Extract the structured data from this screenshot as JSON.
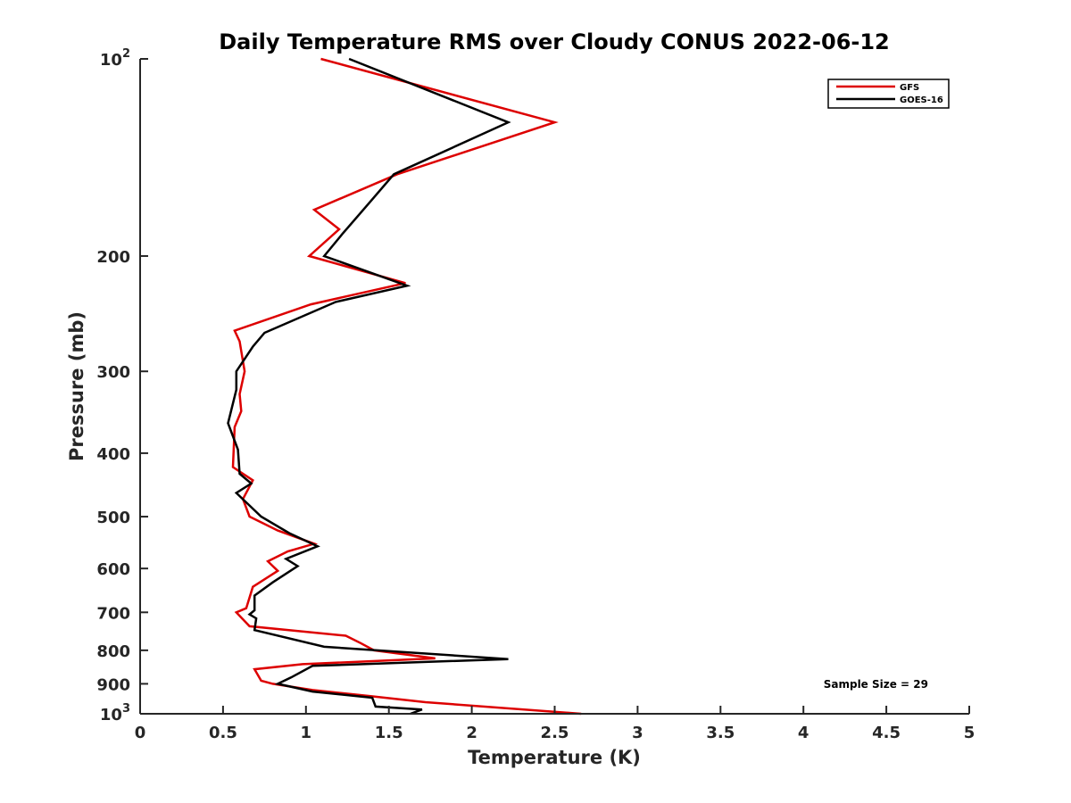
{
  "chart_data": {
    "type": "line",
    "title": "Daily Temperature RMS over Cloudy CONUS 2022-06-12",
    "xlabel": "Temperature (K)",
    "ylabel": "Pressure (mb)",
    "xlim": [
      0,
      5
    ],
    "ylim": [
      100,
      1000
    ],
    "yscale": "log",
    "y_reversed": true,
    "xticks": [
      0,
      0.5,
      1,
      1.5,
      2,
      2.5,
      3,
      3.5,
      4,
      4.5,
      5
    ],
    "xtick_labels": [
      "0",
      "0.5",
      "1",
      "1.5",
      "2",
      "2.5",
      "3",
      "3.5",
      "4",
      "4.5",
      "5"
    ],
    "yticks": [
      100,
      200,
      300,
      400,
      500,
      600,
      700,
      800,
      900,
      1000
    ],
    "ytick_labels": [
      {
        "base": "10",
        "exp": "2"
      },
      {
        "base": "200",
        "exp": ""
      },
      {
        "base": "300",
        "exp": ""
      },
      {
        "base": "400",
        "exp": ""
      },
      {
        "base": "500",
        "exp": ""
      },
      {
        "base": "600",
        "exp": ""
      },
      {
        "base": "700",
        "exp": ""
      },
      {
        "base": "800",
        "exp": ""
      },
      {
        "base": "900",
        "exp": ""
      },
      {
        "base": "10",
        "exp": "3"
      }
    ],
    "legend_location": "top-right",
    "series": [
      {
        "name": "GFS",
        "color": "#dd0000",
        "points": [
          [
            1.09,
            100
          ],
          [
            2.5,
            125
          ],
          [
            1.55,
            150
          ],
          [
            1.05,
            170
          ],
          [
            1.2,
            182
          ],
          [
            1.02,
            200
          ],
          [
            1.6,
            220
          ],
          [
            1.03,
            237
          ],
          [
            0.57,
            260
          ],
          [
            0.6,
            270
          ],
          [
            0.63,
            300
          ],
          [
            0.6,
            325
          ],
          [
            0.61,
            345
          ],
          [
            0.57,
            365
          ],
          [
            0.56,
            420
          ],
          [
            0.68,
            440
          ],
          [
            0.62,
            470
          ],
          [
            0.66,
            500
          ],
          [
            0.83,
            525
          ],
          [
            1.05,
            550
          ],
          [
            0.89,
            565
          ],
          [
            0.77,
            585
          ],
          [
            0.83,
            605
          ],
          [
            0.68,
            640
          ],
          [
            0.64,
            690
          ],
          [
            0.58,
            700
          ],
          [
            0.66,
            735
          ],
          [
            1.24,
            760
          ],
          [
            1.33,
            780
          ],
          [
            1.41,
            800
          ],
          [
            1.78,
            823
          ],
          [
            0.98,
            840
          ],
          [
            0.69,
            855
          ],
          [
            0.73,
            890
          ],
          [
            0.8,
            900
          ],
          [
            1.04,
            920
          ],
          [
            1.39,
            940
          ],
          [
            1.72,
            960
          ],
          [
            2.66,
            1000
          ]
        ]
      },
      {
        "name": "GOES-16",
        "color": "#000000",
        "points": [
          [
            1.26,
            100
          ],
          [
            2.22,
            125
          ],
          [
            1.53,
            150
          ],
          [
            1.39,
            165
          ],
          [
            1.22,
            185
          ],
          [
            1.11,
            200
          ],
          [
            1.61,
            222
          ],
          [
            1.18,
            235
          ],
          [
            0.75,
            262
          ],
          [
            0.68,
            275
          ],
          [
            0.58,
            300
          ],
          [
            0.58,
            320
          ],
          [
            0.53,
            360
          ],
          [
            0.59,
            395
          ],
          [
            0.6,
            430
          ],
          [
            0.67,
            445
          ],
          [
            0.58,
            460
          ],
          [
            0.73,
            500
          ],
          [
            0.9,
            530
          ],
          [
            1.07,
            555
          ],
          [
            0.88,
            580
          ],
          [
            0.95,
            595
          ],
          [
            0.8,
            630
          ],
          [
            0.69,
            660
          ],
          [
            0.69,
            695
          ],
          [
            0.66,
            705
          ],
          [
            0.7,
            715
          ],
          [
            0.69,
            745
          ],
          [
            1.11,
            790
          ],
          [
            2.22,
            825
          ],
          [
            1.04,
            845
          ],
          [
            0.91,
            880
          ],
          [
            0.83,
            900
          ],
          [
            1.04,
            925
          ],
          [
            1.4,
            945
          ],
          [
            1.42,
            975
          ],
          [
            1.7,
            985
          ],
          [
            1.63,
            1000
          ]
        ]
      }
    ],
    "annotations": [
      {
        "text": "Sample Size = 29",
        "x": 4.15,
        "y": 900
      }
    ]
  }
}
